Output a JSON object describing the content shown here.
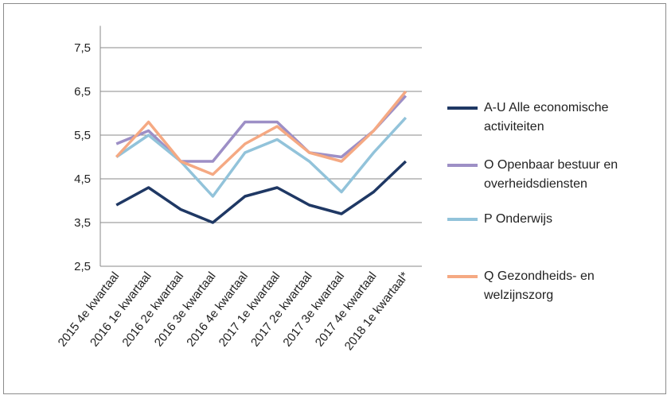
{
  "chart_data": {
    "type": "line",
    "categories": [
      "2015 4e kwartaal",
      "2016 1e kwartaal",
      "2016 2e kwartaal",
      "2016 3e kwartaal",
      "2016 4e kwartaal",
      "2017 1e kwartaal",
      "2017 2e kwartaal",
      "2017 3e kwartaal",
      "2017 4e kwartaal",
      "2018 1e kwartaal*"
    ],
    "series": [
      {
        "name": "A-U Alle economische activiteiten",
        "color": "#1f3864",
        "values": [
          3.9,
          4.3,
          3.8,
          3.5,
          4.1,
          4.3,
          3.9,
          3.7,
          4.2,
          4.9
        ]
      },
      {
        "name": "O Openbaar bestuur en overheidsdiensten",
        "color": "#9d8fc6",
        "values": [
          5.3,
          5.6,
          4.9,
          4.9,
          5.8,
          5.8,
          5.1,
          5.0,
          5.6,
          6.4
        ]
      },
      {
        "name": "P Onderwijs",
        "color": "#92c3da",
        "values": [
          5.0,
          5.5,
          4.9,
          4.1,
          5.1,
          5.4,
          4.9,
          4.2,
          5.1,
          5.9
        ]
      },
      {
        "name": "Q Gezondheids- en welzijnszorg",
        "color": "#f5a983",
        "values": [
          5.0,
          5.8,
          4.9,
          4.6,
          5.3,
          5.7,
          5.1,
          4.9,
          5.6,
          6.5
        ]
      }
    ],
    "ylim": [
      2.5,
      8.0
    ],
    "yticks": [
      {
        "value": 2.5,
        "label": "2,5"
      },
      {
        "value": 3.5,
        "label": "3,5"
      },
      {
        "value": 4.5,
        "label": "4,5"
      },
      {
        "value": 5.5,
        "label": "5,5"
      },
      {
        "value": 6.5,
        "label": "6,5"
      },
      {
        "value": 7.5,
        "label": "7,5"
      }
    ],
    "grid": true,
    "legend": "right"
  }
}
